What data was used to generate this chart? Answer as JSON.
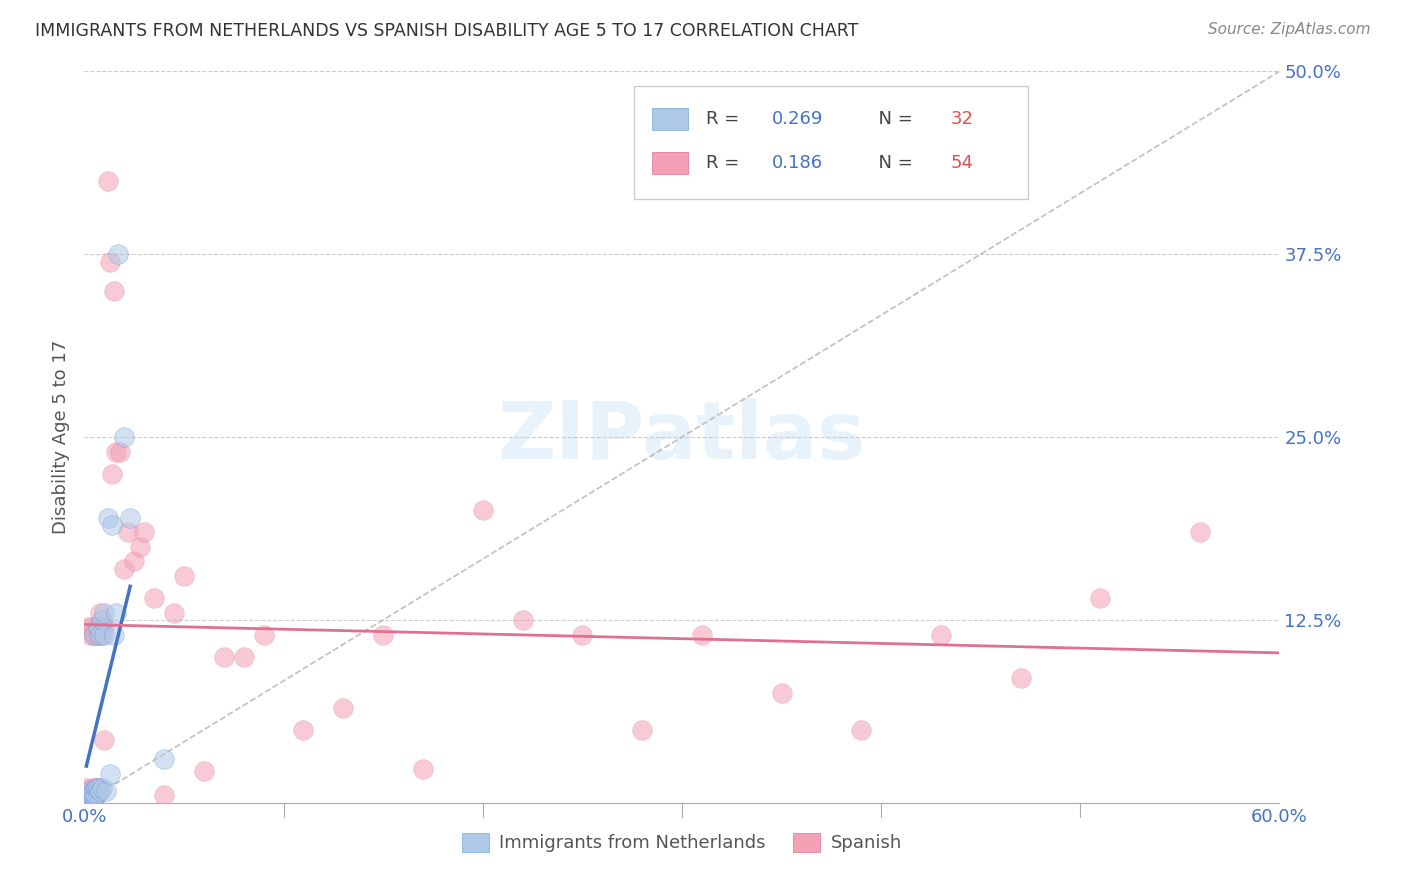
{
  "title": "IMMIGRANTS FROM NETHERLANDS VS SPANISH DISABILITY AGE 5 TO 17 CORRELATION CHART",
  "source": "Source: ZipAtlas.com",
  "ylabel": "Disability Age 5 to 17",
  "xlim": [
    0.0,
    0.6
  ],
  "ylim": [
    0.0,
    0.5
  ],
  "legend1_r": "0.269",
  "legend1_n": "32",
  "legend2_r": "0.186",
  "legend2_n": "54",
  "legend1_label": "Immigrants from Netherlands",
  "legend2_label": "Spanish",
  "color_blue": "#aec8e8",
  "color_pink": "#f4a0b5",
  "color_blue_line": "#4472c4",
  "color_pink_line": "#e07090",
  "color_blue_text": "#4472c4",
  "color_pink_text": "#e05a7a",
  "color_red_n": "#e05050",
  "watermark": "ZIPatlas",
  "netherlands_x": [
    0.001,
    0.002,
    0.002,
    0.003,
    0.003,
    0.003,
    0.004,
    0.004,
    0.005,
    0.005,
    0.005,
    0.006,
    0.006,
    0.007,
    0.007,
    0.007,
    0.008,
    0.008,
    0.009,
    0.009,
    0.01,
    0.01,
    0.011,
    0.012,
    0.013,
    0.014,
    0.015,
    0.016,
    0.017,
    0.02,
    0.023,
    0.04
  ],
  "netherlands_y": [
    0.002,
    0.004,
    0.005,
    0.003,
    0.006,
    0.008,
    0.005,
    0.007,
    0.004,
    0.006,
    0.115,
    0.005,
    0.01,
    0.007,
    0.01,
    0.12,
    0.008,
    0.115,
    0.01,
    0.125,
    0.115,
    0.13,
    0.008,
    0.195,
    0.02,
    0.19,
    0.115,
    0.13,
    0.375,
    0.25,
    0.195,
    0.03
  ],
  "spanish_x": [
    0.001,
    0.001,
    0.002,
    0.002,
    0.003,
    0.003,
    0.004,
    0.004,
    0.005,
    0.005,
    0.006,
    0.006,
    0.007,
    0.007,
    0.008,
    0.008,
    0.009,
    0.009,
    0.01,
    0.01,
    0.012,
    0.013,
    0.014,
    0.015,
    0.016,
    0.018,
    0.02,
    0.022,
    0.025,
    0.028,
    0.03,
    0.035,
    0.04,
    0.045,
    0.05,
    0.06,
    0.07,
    0.08,
    0.09,
    0.11,
    0.13,
    0.15,
    0.17,
    0.2,
    0.22,
    0.25,
    0.28,
    0.31,
    0.35,
    0.39,
    0.43,
    0.47,
    0.51,
    0.56
  ],
  "spanish_y": [
    0.006,
    0.01,
    0.005,
    0.12,
    0.008,
    0.115,
    0.01,
    0.12,
    0.008,
    0.115,
    0.01,
    0.115,
    0.01,
    0.115,
    0.12,
    0.13,
    0.115,
    0.12,
    0.12,
    0.043,
    0.425,
    0.37,
    0.225,
    0.35,
    0.24,
    0.24,
    0.16,
    0.185,
    0.165,
    0.175,
    0.185,
    0.14,
    0.005,
    0.13,
    0.155,
    0.022,
    0.1,
    0.1,
    0.115,
    0.05,
    0.065,
    0.115,
    0.023,
    0.2,
    0.125,
    0.115,
    0.05,
    0.115,
    0.075,
    0.05,
    0.115,
    0.085,
    0.14,
    0.185
  ]
}
